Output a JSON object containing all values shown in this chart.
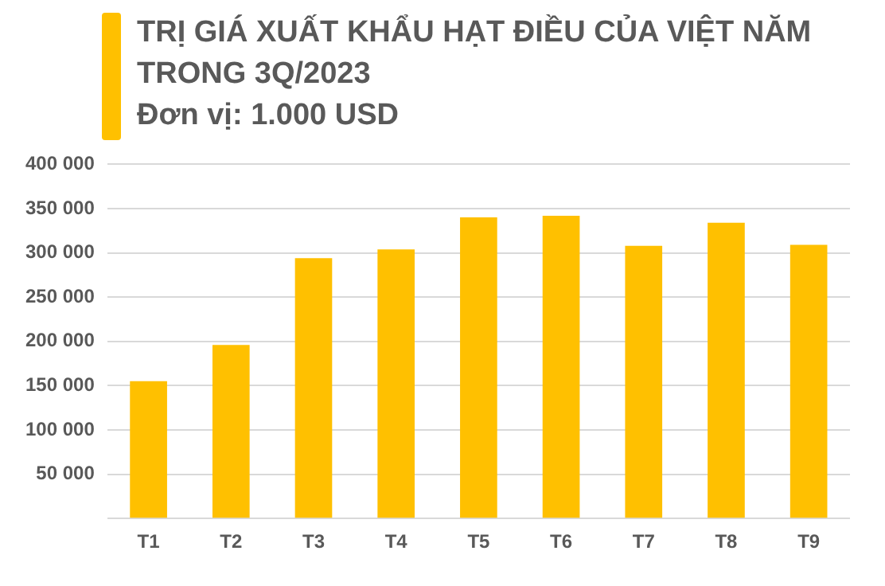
{
  "chart_data": {
    "type": "bar",
    "title": "TRỊ GIÁ XUẤT KHẨU HẠT ĐIỀU CỦA VIỆT NĂM TRONG 3Q/2023",
    "subtitle": "Đơn vị: 1.000 USD",
    "categories": [
      "T1",
      "T2",
      "T3",
      "T4",
      "T5",
      "T6",
      "T7",
      "T8",
      "T9"
    ],
    "values": [
      155000,
      196000,
      294000,
      304000,
      340000,
      342000,
      308000,
      334000,
      309000
    ],
    "color": "#ffc000",
    "ylim": [
      0,
      400000
    ],
    "yticks": [
      {
        "value": 0,
        "label": null
      },
      {
        "value": 50000,
        "label": "50 000"
      },
      {
        "value": 100000,
        "label": "100 000"
      },
      {
        "value": 150000,
        "label": "150 000"
      },
      {
        "value": 200000,
        "label": "200 000"
      },
      {
        "value": 250000,
        "label": "250 000"
      },
      {
        "value": 300000,
        "label": "300 000"
      },
      {
        "value": 350000,
        "label": "350 000"
      },
      {
        "value": 400000,
        "label": "400 000"
      }
    ],
    "grid": "y",
    "legend": false
  }
}
